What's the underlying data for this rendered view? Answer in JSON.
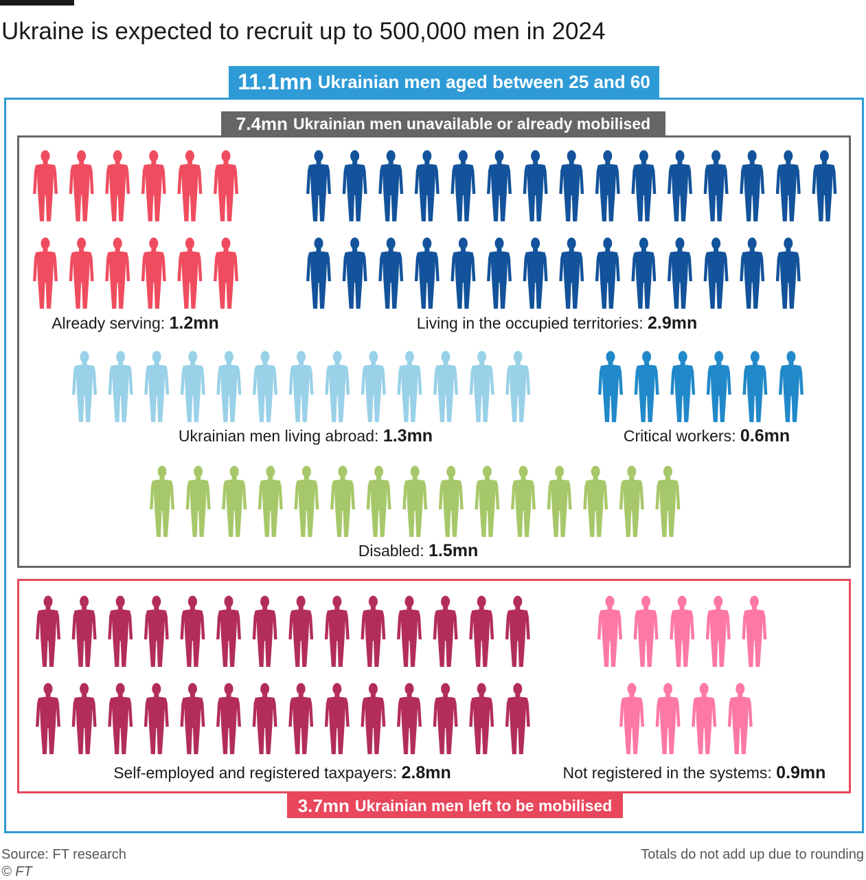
{
  "title": "Ukraine is expected to recruit up to 500,000 men in 2024",
  "boxes": {
    "total": {
      "value": "11.1mn",
      "text": "Ukrainian men aged between 25 and 60",
      "color": "#2e9bd6"
    },
    "unavailable": {
      "value": "7.4mn",
      "text": "Ukrainian men unavailable or already mobilised",
      "color": "#666666"
    },
    "left": {
      "value": "3.7mn",
      "text": "Ukrainian men left to be mobilised",
      "color": "#e8475c"
    }
  },
  "chart_data": {
    "type": "pictogram",
    "groups": [
      {
        "id": "serving",
        "label": "Already serving:",
        "value_label": "1.2mn",
        "value": 1.2,
        "icons": 12,
        "color": "#ef4d5f",
        "box": "unavailable"
      },
      {
        "id": "occupied",
        "label": "Living in the occupied territories:",
        "value_label": "2.9mn",
        "value": 2.9,
        "icons": 29,
        "color": "#13539b",
        "box": "unavailable"
      },
      {
        "id": "abroad",
        "label": "Ukrainian men living abroad:",
        "value_label": "1.3mn",
        "value": 1.3,
        "icons": 13,
        "color": "#99d1e8",
        "box": "unavailable"
      },
      {
        "id": "critical",
        "label": "Critical workers:",
        "value_label": "0.6mn",
        "value": 0.6,
        "icons": 6,
        "color": "#2189c9",
        "box": "unavailable"
      },
      {
        "id": "disabled",
        "label": "Disabled:",
        "value_label": "1.5mn",
        "value": 1.5,
        "icons": 15,
        "color": "#a7c86a",
        "box": "unavailable"
      },
      {
        "id": "selfemployed",
        "label": "Self-employed and registered taxpayers:",
        "value_label": "2.8mn",
        "value": 2.8,
        "icons": 28,
        "color": "#b32d5c",
        "box": "left"
      },
      {
        "id": "unregistered",
        "label": "Not registered in the systems:",
        "value_label": "0.9mn",
        "value": 0.9,
        "icons": 9,
        "color": "#fd79a3",
        "box": "left"
      }
    ]
  },
  "footer": {
    "source": "Source: FT research",
    "credit": "© FT",
    "note": "Totals do not add up due to rounding"
  }
}
